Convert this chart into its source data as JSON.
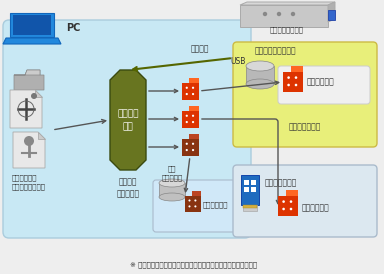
{
  "bg_color": "#eeeeee",
  "pc_box_color": "#c8e8f4",
  "pc_box_edge": "#aaccdd",
  "storage_box_color": "#e8ef7a",
  "storage_box_edge": "#ccbb44",
  "external_box_color": "#dce8f0",
  "external_box_edge": "#aabbcc",
  "internal_box_color": "#d0e8f8",
  "internal_box_edge": "#aabbcc",
  "process_color": "#687520",
  "arrow_color": "#555555",
  "arrow_color_dark": "#556600",
  "data_red": "#dd3300",
  "data_orange": "#ff6622",
  "data_dark": "#883311",
  "data_dark2": "#bb4422",
  "footer_text": "※ 分散データ１〜３のいずれか２つにより元のデータを復元可能",
  "label_dongle": "物理乱数ドングル",
  "label_randn": "物理乱数",
  "label_usb": "USB",
  "label_randn_gen": "（＊）物理乱数生成",
  "label_storage_func": "ストレージ機能",
  "label_process": "秘密分散\n処理",
  "label_driver": "秘密分散\nドライバー",
  "label_file": "医療情報等の\n機微情報ファイル",
  "label_data1": "分散データ１",
  "label_data2": "分散データ２",
  "label_data3": "分散データ３",
  "label_internal": "内部\nストレージ",
  "label_external": "外部ストレージ"
}
